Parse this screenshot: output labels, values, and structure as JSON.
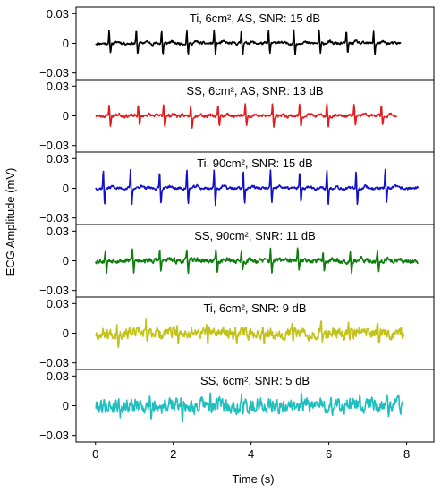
{
  "chart_data": {
    "type": "line",
    "xlabel": "Time (s)",
    "ylabel": "ECG Amplitude (mV)",
    "xlim": [
      -0.5,
      8.7
    ],
    "xticks": [
      0,
      2,
      4,
      6,
      8
    ],
    "ylim": [
      -0.033,
      0.033
    ],
    "yticks": [
      {
        "value": 0.03,
        "label": "0.03"
      },
      {
        "value": 0,
        "label": "0"
      },
      {
        "value": -0.03,
        "label": "−0.03"
      }
    ],
    "grid": false,
    "panels": [
      {
        "title": "Ti, 6cm², AS, SNR: 15 dB",
        "color": "#000000",
        "x_end": 7.85,
        "beats": [
          0.35,
          1.05,
          1.7,
          2.35,
          3.05,
          3.75,
          4.45,
          5.1,
          5.75,
          6.45,
          7.15
        ],
        "peak": 0.013,
        "trough": -0.011,
        "noise": 0.0016,
        "seed": 11
      },
      {
        "title": "SS, 6cm², AS, SNR: 13 dB",
        "color": "#e41a1c",
        "x_end": 7.75,
        "beats": [
          0.35,
          1.1,
          1.75,
          2.45,
          3.15,
          3.85,
          4.55,
          5.25,
          5.95,
          6.65,
          7.35
        ],
        "peak": 0.012,
        "trough": -0.011,
        "noise": 0.0019,
        "seed": 23
      },
      {
        "title": "Ti, 90cm², SNR: 15 dB",
        "color": "#1010c8",
        "x_end": 8.3,
        "beats": [
          0.2,
          0.9,
          1.65,
          2.35,
          3.05,
          3.8,
          4.5,
          5.25,
          5.95,
          6.7,
          7.45
        ],
        "peak": 0.018,
        "trough": -0.016,
        "noise": 0.0017,
        "seed": 37
      },
      {
        "title": "SS, 90cm², SNR: 11 dB",
        "color": "#0a7d0a",
        "x_end": 8.3,
        "beats": [
          0.25,
          0.95,
          1.65,
          2.35,
          3.1,
          3.75,
          4.5,
          5.2,
          5.85,
          6.55,
          7.25
        ],
        "peak": 0.011,
        "trough": -0.011,
        "noise": 0.0028,
        "seed": 53
      },
      {
        "title": "Ti, 6cm², SNR: 9 dB",
        "color": "#c2c21a",
        "x_end": 7.95,
        "beats": [
          0.55,
          1.3,
          2.1,
          2.85,
          3.6,
          4.3,
          5.05,
          5.8,
          6.5,
          7.25
        ],
        "peak": 0.01,
        "trough": -0.01,
        "noise": 0.0062,
        "seed": 67
      },
      {
        "title": "SS, 6cm², SNR: 5 dB",
        "color": "#1fbfbf",
        "x_end": 7.9,
        "beats": [
          0.6,
          1.4,
          2.2,
          2.95,
          3.75,
          4.5,
          5.3,
          6.05,
          6.8,
          7.5
        ],
        "peak": 0.009,
        "trough": -0.009,
        "noise": 0.0085,
        "seed": 79
      }
    ]
  }
}
